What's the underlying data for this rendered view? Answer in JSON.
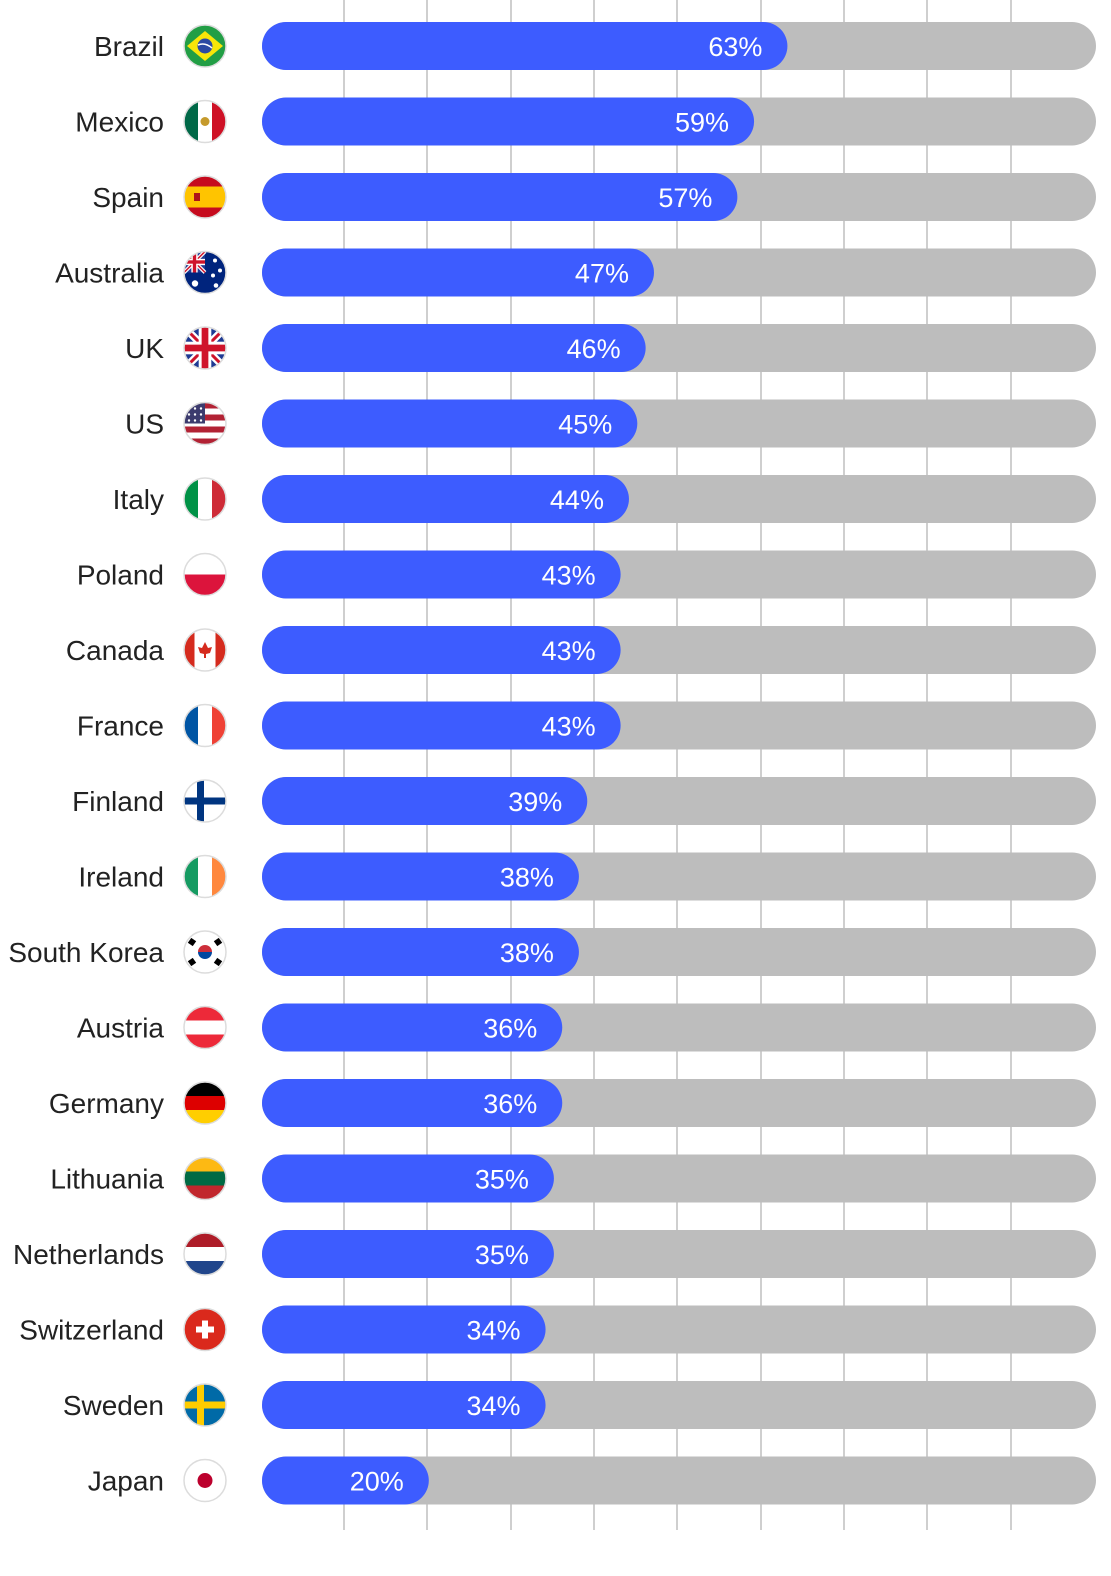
{
  "chart_data": {
    "type": "bar",
    "orientation": "horizontal",
    "title": "",
    "xlabel": "",
    "ylabel": "",
    "xlim": [
      0,
      100
    ],
    "grid": true,
    "categories": [
      "Brazil",
      "Mexico",
      "Spain",
      "Australia",
      "UK",
      "US",
      "Italy",
      "Poland",
      "Canada",
      "France",
      "Finland",
      "Ireland",
      "South Korea",
      "Austria",
      "Germany",
      "Lithuania",
      "Netherlands",
      "Switzerland",
      "Sweden",
      "Japan"
    ],
    "values": [
      63,
      59,
      57,
      47,
      46,
      45,
      44,
      43,
      43,
      43,
      39,
      38,
      38,
      36,
      36,
      35,
      35,
      34,
      34,
      20
    ],
    "value_labels": [
      "63%",
      "59%",
      "57%",
      "47%",
      "46%",
      "45%",
      "44%",
      "43%",
      "43%",
      "43%",
      "39%",
      "38%",
      "38%",
      "36%",
      "36%",
      "35%",
      "35%",
      "34%",
      "34%",
      "20%"
    ],
    "flags": [
      "brazil-flag-icon",
      "mexico-flag-icon",
      "spain-flag-icon",
      "australia-flag-icon",
      "uk-flag-icon",
      "us-flag-icon",
      "italy-flag-icon",
      "poland-flag-icon",
      "canada-flag-icon",
      "france-flag-icon",
      "finland-flag-icon",
      "ireland-flag-icon",
      "south-korea-flag-icon",
      "austria-flag-icon",
      "germany-flag-icon",
      "lithuania-flag-icon",
      "netherlands-flag-icon",
      "switzerland-flag-icon",
      "sweden-flag-icon",
      "japan-flag-icon"
    ],
    "colors": {
      "bar": "#3d5cff",
      "track": "#bdbdbd",
      "grid": "#cfcfcf",
      "label": "#222222",
      "value_text": "#ffffff"
    }
  }
}
